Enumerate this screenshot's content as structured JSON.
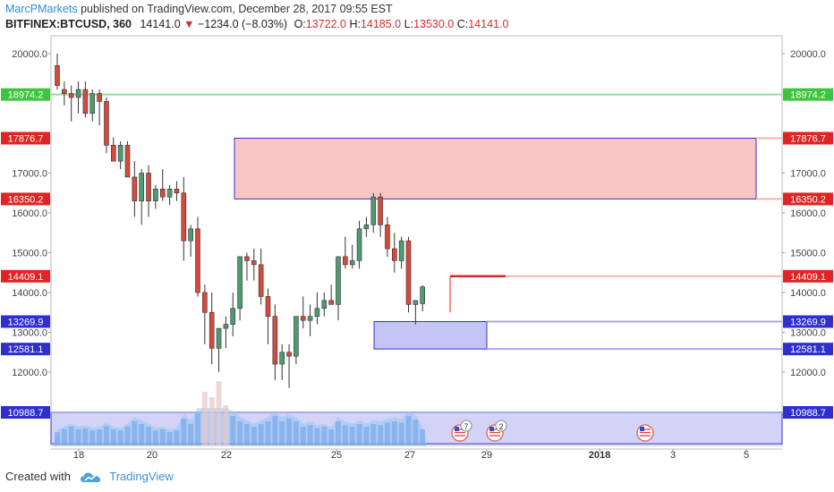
{
  "header": {
    "author": "MarcPMarkets",
    "published": "published on TradingView.com, December 28, 2017 09:55 EST"
  },
  "symbol": {
    "ticker": "BITFINEX:BTCUSD, 360",
    "last": "14141.0",
    "change_arrow": "▼",
    "change": "−1234.0 (−8.03%)",
    "o_label": "O:",
    "o": "13722.0",
    "h_label": "H:",
    "h": "14185.0",
    "l_label": "L:",
    "l": "13530.0",
    "c_label": "C:",
    "c": "14141.0"
  },
  "footer": {
    "created_with": "Created with",
    "brand": "TradingView"
  },
  "colors": {
    "up": "#4e9a72",
    "down": "#d64a3c",
    "green_line": "#8fe08f",
    "red_zone": "#f9c4c4",
    "blue_zone": "#c4c4f6",
    "zone_border": "#3333cc",
    "volume": "#6fa0e8",
    "volume_area": "#8fc7f2"
  },
  "chart_data": {
    "type": "candlestick",
    "y_axis_ticks": [
      "20000.0",
      "17000.0",
      "16000.0",
      "15000.0",
      "14000.0",
      "13000.0",
      "12000.0"
    ],
    "y_tick_values": [
      20000,
      17000,
      16000,
      15000,
      14000,
      13000,
      12000
    ],
    "ylim": [
      10500,
      20400
    ],
    "x_axis_ticks": [
      "18",
      "20",
      "22",
      "25",
      "27",
      "29",
      "2018",
      "3",
      "5"
    ],
    "price_levels": [
      {
        "label": "18974.2",
        "value": 18974.2,
        "color": "#3fc43f",
        "line": "#8fe08f"
      },
      {
        "label": "17876.7",
        "value": 17876.7,
        "color": "#e02424",
        "line": "#f5b3b3"
      },
      {
        "label": "16350.2",
        "value": 16350.2,
        "color": "#e02424",
        "line": "#f5b3b3"
      },
      {
        "label": "14409.1",
        "value": 14409.1,
        "color": "#e02424",
        "line": "#f5b3b3"
      },
      {
        "label": "13269.9",
        "value": 13269.9,
        "color": "#2f2fd0",
        "line": "#a8a8ef"
      },
      {
        "label": "12581.1",
        "value": 12581.1,
        "color": "#2f2fd0",
        "line": "#a8a8ef"
      },
      {
        "label": "10988.7",
        "value": 10988.7,
        "color": "#2f2fd0",
        "line": "#a8a8ef"
      }
    ],
    "zones": [
      {
        "kind": "supply",
        "top": 17876.7,
        "bottom": 16350.2
      },
      {
        "kind": "demand",
        "top": 13269.9,
        "bottom": 12581.1
      },
      {
        "kind": "demand",
        "top": 10988.7,
        "bottom": 10200
      }
    ],
    "candles": [
      {
        "o": 19700,
        "h": 20000,
        "l": 19100,
        "c": 19200
      },
      {
        "o": 19100,
        "h": 19300,
        "l": 18700,
        "c": 19000
      },
      {
        "o": 19000,
        "h": 19200,
        "l": 18300,
        "c": 18900
      },
      {
        "o": 18900,
        "h": 19300,
        "l": 18500,
        "c": 19100
      },
      {
        "o": 19100,
        "h": 19300,
        "l": 18400,
        "c": 18500
      },
      {
        "o": 18500,
        "h": 19100,
        "l": 18300,
        "c": 19000
      },
      {
        "o": 19000,
        "h": 19100,
        "l": 18200,
        "c": 18800
      },
      {
        "o": 18800,
        "h": 18900,
        "l": 17500,
        "c": 17700
      },
      {
        "o": 17700,
        "h": 17900,
        "l": 17300,
        "c": 17300
      },
      {
        "o": 17300,
        "h": 17800,
        "l": 17100,
        "c": 17700
      },
      {
        "o": 17700,
        "h": 17800,
        "l": 16900,
        "c": 16900
      },
      {
        "o": 16900,
        "h": 17300,
        "l": 15900,
        "c": 16300
      },
      {
        "o": 16300,
        "h": 17100,
        "l": 15700,
        "c": 17000
      },
      {
        "o": 17000,
        "h": 17200,
        "l": 15900,
        "c": 16300
      },
      {
        "o": 16300,
        "h": 16700,
        "l": 16100,
        "c": 16600
      },
      {
        "o": 16600,
        "h": 17100,
        "l": 16300,
        "c": 16400
      },
      {
        "o": 16400,
        "h": 16700,
        "l": 16200,
        "c": 16600
      },
      {
        "o": 16600,
        "h": 16800,
        "l": 16300,
        "c": 16500
      },
      {
        "o": 16500,
        "h": 16900,
        "l": 14800,
        "c": 15300
      },
      {
        "o": 15300,
        "h": 15700,
        "l": 14900,
        "c": 15600
      },
      {
        "o": 15600,
        "h": 15900,
        "l": 13900,
        "c": 14000
      },
      {
        "o": 14000,
        "h": 14200,
        "l": 12700,
        "c": 13500
      },
      {
        "o": 13500,
        "h": 14000,
        "l": 12200,
        "c": 12600
      },
      {
        "o": 12600,
        "h": 13100,
        "l": 12000,
        "c": 13100
      },
      {
        "o": 13100,
        "h": 13400,
        "l": 12600,
        "c": 13200
      },
      {
        "o": 13200,
        "h": 14000,
        "l": 12900,
        "c": 13600
      },
      {
        "o": 13600,
        "h": 14900,
        "l": 13300,
        "c": 14900
      },
      {
        "o": 14900,
        "h": 15000,
        "l": 14300,
        "c": 14800
      },
      {
        "o": 14800,
        "h": 15100,
        "l": 14300,
        "c": 14700
      },
      {
        "o": 14700,
        "h": 15100,
        "l": 13700,
        "c": 13900
      },
      {
        "o": 13900,
        "h": 14100,
        "l": 12700,
        "c": 13400
      },
      {
        "o": 13400,
        "h": 13700,
        "l": 11800,
        "c": 12200
      },
      {
        "o": 12200,
        "h": 12700,
        "l": 11800,
        "c": 12500
      },
      {
        "o": 12500,
        "h": 12700,
        "l": 11600,
        "c": 12400
      },
      {
        "o": 12400,
        "h": 13400,
        "l": 12200,
        "c": 13400
      },
      {
        "o": 13400,
        "h": 13900,
        "l": 13100,
        "c": 13300
      },
      {
        "o": 13300,
        "h": 13700,
        "l": 12900,
        "c": 13400
      },
      {
        "o": 13400,
        "h": 14000,
        "l": 13200,
        "c": 13600
      },
      {
        "o": 13600,
        "h": 14000,
        "l": 13400,
        "c": 13800
      },
      {
        "o": 13800,
        "h": 14200,
        "l": 13700,
        "c": 13700
      },
      {
        "o": 13700,
        "h": 14900,
        "l": 13300,
        "c": 14900
      },
      {
        "o": 14900,
        "h": 15400,
        "l": 14600,
        "c": 14700
      },
      {
        "o": 14700,
        "h": 15200,
        "l": 14600,
        "c": 14800
      },
      {
        "o": 14800,
        "h": 15800,
        "l": 14600,
        "c": 15600
      },
      {
        "o": 15600,
        "h": 15900,
        "l": 15400,
        "c": 15700
      },
      {
        "o": 15700,
        "h": 16500,
        "l": 15500,
        "c": 16400
      },
      {
        "o": 16400,
        "h": 16500,
        "l": 15400,
        "c": 15700
      },
      {
        "o": 15700,
        "h": 15900,
        "l": 14900,
        "c": 15100
      },
      {
        "o": 15100,
        "h": 15500,
        "l": 14500,
        "c": 14800
      },
      {
        "o": 14800,
        "h": 15400,
        "l": 14600,
        "c": 15300
      },
      {
        "o": 15300,
        "h": 15400,
        "l": 13500,
        "c": 13700
      },
      {
        "o": 13700,
        "h": 13800,
        "l": 13200,
        "c": 13800
      },
      {
        "o": 13722,
        "h": 14185,
        "l": 13530,
        "c": 14141
      }
    ],
    "volumes": [
      0.25,
      0.3,
      0.35,
      0.3,
      0.32,
      0.28,
      0.3,
      0.36,
      0.3,
      0.28,
      0.35,
      0.45,
      0.4,
      0.35,
      0.28,
      0.3,
      0.25,
      0.28,
      0.5,
      0.4,
      0.6,
      1.0,
      0.9,
      1.2,
      0.75,
      0.55,
      0.45,
      0.4,
      0.35,
      0.4,
      0.45,
      0.55,
      0.45,
      0.5,
      0.45,
      0.35,
      0.38,
      0.32,
      0.35,
      0.3,
      0.45,
      0.38,
      0.35,
      0.4,
      0.35,
      0.4,
      0.38,
      0.42,
      0.45,
      0.42,
      0.55,
      0.48,
      0.3
    ]
  }
}
